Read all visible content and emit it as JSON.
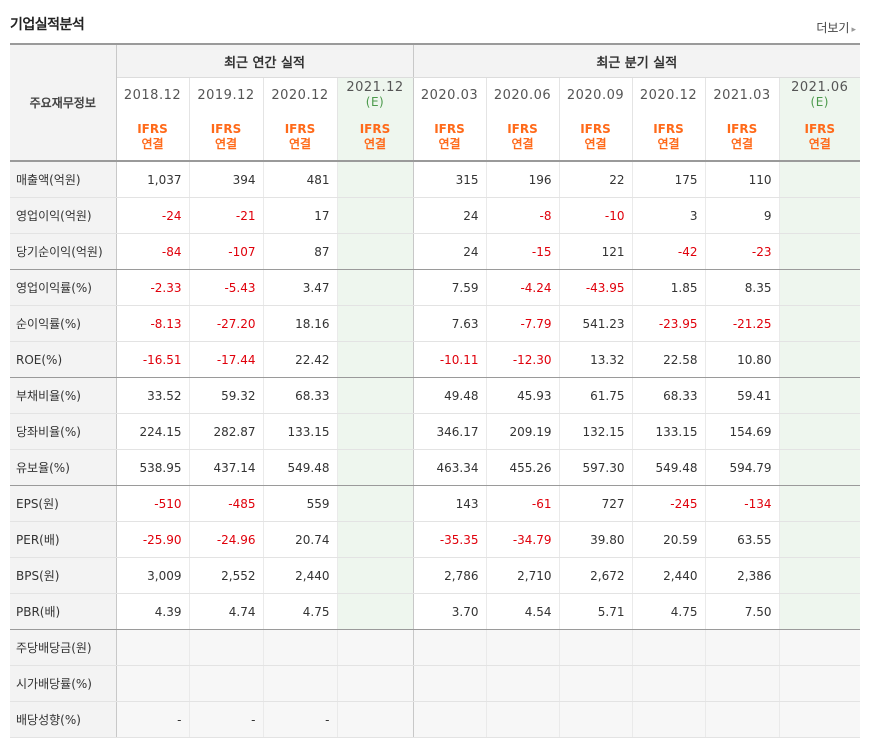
{
  "header": {
    "title": "기업실적분석",
    "more_label": "더보기",
    "more_arrow": "▸"
  },
  "table": {
    "row_header_label": "주요재무정보",
    "groups": [
      "최근 연간 실적",
      "최근 분기 실적"
    ],
    "periods": [
      {
        "label": "2018.12",
        "est": false
      },
      {
        "label": "2019.12",
        "est": false
      },
      {
        "label": "2020.12",
        "est": false
      },
      {
        "label": "2021.12",
        "est": true,
        "est_label": "(E)"
      },
      {
        "label": "2020.03",
        "est": false
      },
      {
        "label": "2020.06",
        "est": false
      },
      {
        "label": "2020.09",
        "est": false
      },
      {
        "label": "2020.12",
        "est": false
      },
      {
        "label": "2021.03",
        "est": false
      },
      {
        "label": "2021.06",
        "est": true,
        "est_label": "(E)"
      }
    ],
    "ifrs_line1": "IFRS",
    "ifrs_line2": "연결",
    "rows": [
      {
        "label": "매출액(억원)",
        "values": [
          "1,037",
          "394",
          "481",
          "",
          "315",
          "196",
          "22",
          "175",
          "110",
          ""
        ]
      },
      {
        "label": "영업이익(억원)",
        "values": [
          "-24",
          "-21",
          "17",
          "",
          "24",
          "-8",
          "-10",
          "3",
          "9",
          ""
        ]
      },
      {
        "label": "당기순이익(억원)",
        "values": [
          "-84",
          "-107",
          "87",
          "",
          "24",
          "-15",
          "121",
          "-42",
          "-23",
          ""
        ],
        "group_end": true
      },
      {
        "label": "영업이익률(%)",
        "values": [
          "-2.33",
          "-5.43",
          "3.47",
          "",
          "7.59",
          "-4.24",
          "-43.95",
          "1.85",
          "8.35",
          ""
        ]
      },
      {
        "label": "순이익률(%)",
        "values": [
          "-8.13",
          "-27.20",
          "18.16",
          "",
          "7.63",
          "-7.79",
          "541.23",
          "-23.95",
          "-21.25",
          ""
        ]
      },
      {
        "label": "ROE(%)",
        "values": [
          "-16.51",
          "-17.44",
          "22.42",
          "",
          "-10.11",
          "-12.30",
          "13.32",
          "22.58",
          "10.80",
          ""
        ],
        "group_end": true
      },
      {
        "label": "부채비율(%)",
        "values": [
          "33.52",
          "59.32",
          "68.33",
          "",
          "49.48",
          "45.93",
          "61.75",
          "68.33",
          "59.41",
          ""
        ]
      },
      {
        "label": "당좌비율(%)",
        "values": [
          "224.15",
          "282.87",
          "133.15",
          "",
          "346.17",
          "209.19",
          "132.15",
          "133.15",
          "154.69",
          ""
        ]
      },
      {
        "label": "유보율(%)",
        "values": [
          "538.95",
          "437.14",
          "549.48",
          "",
          "463.34",
          "455.26",
          "597.30",
          "549.48",
          "594.79",
          ""
        ],
        "group_end": true
      },
      {
        "label": "EPS(원)",
        "values": [
          "-510",
          "-485",
          "559",
          "",
          "143",
          "-61",
          "727",
          "-245",
          "-134",
          ""
        ]
      },
      {
        "label": "PER(배)",
        "values": [
          "-25.90",
          "-24.96",
          "20.74",
          "",
          "-35.35",
          "-34.79",
          "39.80",
          "20.59",
          "63.55",
          ""
        ]
      },
      {
        "label": "BPS(원)",
        "values": [
          "3,009",
          "2,552",
          "2,440",
          "",
          "2,786",
          "2,710",
          "2,672",
          "2,440",
          "2,386",
          ""
        ]
      },
      {
        "label": "PBR(배)",
        "values": [
          "4.39",
          "4.74",
          "4.75",
          "",
          "3.70",
          "4.54",
          "5.71",
          "4.75",
          "7.50",
          ""
        ],
        "group_end": true
      },
      {
        "label": "주당배당금(원)",
        "values": [
          "",
          "",
          "",
          "",
          "",
          "",
          "",
          "",
          "",
          ""
        ],
        "empty": true
      },
      {
        "label": "시가배당률(%)",
        "values": [
          "",
          "",
          "",
          "",
          "",
          "",
          "",
          "",
          "",
          ""
        ],
        "empty": true
      },
      {
        "label": "배당성향(%)",
        "values": [
          "-",
          "-",
          "-",
          "",
          "",
          "",
          "",
          "",
          "",
          ""
        ],
        "empty": true
      }
    ]
  },
  "colors": {
    "negative": "#e0000b",
    "ifrs": "#ff6a1a",
    "estimate_bg": "#eef6ee",
    "estimate_mark": "#4c9a4c"
  }
}
